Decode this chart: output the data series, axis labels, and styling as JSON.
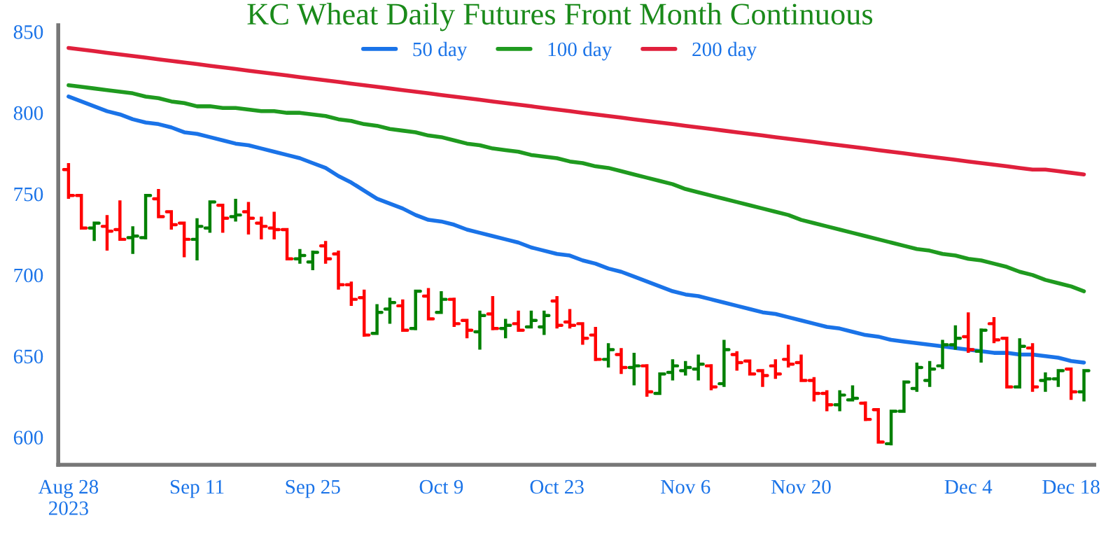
{
  "chart_data": {
    "type": "candlestick",
    "title": "KC Wheat Daily Futures Front Month Continuous",
    "categories": [
      "Aug 28\n2023",
      null,
      null,
      null,
      null,
      null,
      null,
      null,
      null,
      null,
      "Sep 11",
      null,
      null,
      null,
      null,
      null,
      null,
      null,
      null,
      "Sep 25",
      null,
      null,
      null,
      null,
      null,
      null,
      null,
      null,
      null,
      "Oct 9",
      null,
      null,
      null,
      null,
      null,
      null,
      null,
      null,
      "Oct 23",
      null,
      null,
      null,
      null,
      null,
      null,
      null,
      null,
      null,
      "Nov 6",
      null,
      null,
      null,
      null,
      null,
      null,
      null,
      null,
      "Nov 20",
      null,
      null,
      null,
      null,
      null,
      null,
      null,
      null,
      null,
      null,
      null,
      null,
      "Dec 4",
      null,
      null,
      null,
      null,
      null,
      null,
      null,
      "Dec 18",
      null
    ],
    "ohlc": [
      [
        765,
        769,
        747,
        749
      ],
      [
        749,
        749,
        728,
        729
      ],
      [
        729,
        733,
        721,
        732
      ],
      [
        730,
        737,
        715,
        727
      ],
      [
        728,
        746,
        722,
        722
      ],
      [
        723,
        730,
        713,
        724
      ],
      [
        723,
        750,
        722,
        749
      ],
      [
        747,
        753,
        735,
        736
      ],
      [
        739,
        740,
        728,
        731
      ],
      [
        732,
        733,
        711,
        722
      ],
      [
        722,
        735,
        709,
        730
      ],
      [
        729,
        746,
        726,
        745
      ],
      [
        743,
        744,
        726,
        735
      ],
      [
        736,
        747,
        733,
        737
      ],
      [
        739,
        745,
        725,
        735
      ],
      [
        732,
        736,
        722,
        730
      ],
      [
        729,
        739,
        722,
        728
      ],
      [
        728,
        728,
        709,
        710
      ],
      [
        710,
        716,
        707,
        712
      ],
      [
        708,
        715,
        703,
        714
      ],
      [
        718,
        721,
        707,
        710
      ],
      [
        713,
        715,
        691,
        694
      ],
      [
        694,
        696,
        681,
        685
      ],
      [
        686,
        691,
        662,
        663
      ],
      [
        664,
        682,
        663,
        677
      ],
      [
        679,
        686,
        670,
        683
      ],
      [
        681,
        685,
        665,
        666
      ],
      [
        667,
        691,
        666,
        690
      ],
      [
        687,
        692,
        672,
        673
      ],
      [
        677,
        690,
        676,
        685
      ],
      [
        685,
        686,
        668,
        670
      ],
      [
        672,
        673,
        661,
        666
      ],
      [
        665,
        678,
        654,
        675
      ],
      [
        676,
        687,
        666,
        667
      ],
      [
        667,
        673,
        661,
        669
      ],
      [
        670,
        678,
        665,
        666
      ],
      [
        668,
        678,
        667,
        672
      ],
      [
        668,
        678,
        663,
        675
      ],
      [
        684,
        687,
        667,
        669
      ],
      [
        671,
        679,
        667,
        669
      ],
      [
        670,
        670,
        657,
        661
      ],
      [
        663,
        668,
        647,
        648
      ],
      [
        648,
        658,
        643,
        654
      ],
      [
        651,
        655,
        639,
        643
      ],
      [
        643,
        652,
        632,
        644
      ],
      [
        644,
        645,
        625,
        628
      ],
      [
        627,
        640,
        626,
        639
      ],
      [
        640,
        648,
        635,
        644
      ],
      [
        641,
        647,
        638,
        643
      ],
      [
        642,
        651,
        635,
        645
      ],
      [
        644,
        645,
        629,
        631
      ],
      [
        633,
        660,
        631,
        654
      ],
      [
        651,
        653,
        641,
        646
      ],
      [
        647,
        647,
        638,
        639
      ],
      [
        641,
        642,
        631,
        638
      ],
      [
        644,
        648,
        636,
        639
      ],
      [
        648,
        657,
        643,
        645
      ],
      [
        646,
        651,
        635,
        635
      ],
      [
        635,
        637,
        622,
        627
      ],
      [
        627,
        629,
        616,
        620
      ],
      [
        620,
        629,
        616,
        626
      ],
      [
        623,
        632,
        622,
        624
      ],
      [
        621,
        622,
        610,
        611
      ],
      [
        617,
        618,
        596,
        597
      ],
      [
        596,
        617,
        595,
        616
      ],
      [
        616,
        635,
        616,
        634
      ],
      [
        630,
        646,
        628,
        643
      ],
      [
        635,
        647,
        631,
        642
      ],
      [
        644,
        660,
        642,
        657
      ],
      [
        657,
        669,
        654,
        661
      ],
      [
        662,
        677,
        652,
        654
      ],
      [
        653,
        667,
        646,
        666
      ],
      [
        670,
        674,
        658,
        660
      ],
      [
        661,
        662,
        630,
        631
      ],
      [
        631,
        661,
        630,
        656
      ],
      [
        655,
        658,
        628,
        631
      ],
      [
        635,
        640,
        628,
        636
      ],
      [
        636,
        642,
        631,
        641
      ],
      [
        642,
        643,
        623,
        628
      ],
      [
        628,
        642,
        622,
        641
      ]
    ],
    "colors": [
      "#ff0000",
      "#ff0000",
      "#008000",
      "#ff0000",
      "#ff0000",
      "#008000",
      "#008000",
      "#ff0000",
      "#ff0000",
      "#ff0000",
      "#008000",
      "#008000",
      "#ff0000",
      "#008000",
      "#ff0000",
      "#ff0000",
      "#ff0000",
      "#ff0000",
      "#008000",
      "#008000",
      "#ff0000",
      "#ff0000",
      "#ff0000",
      "#ff0000",
      "#008000",
      "#008000",
      "#ff0000",
      "#008000",
      "#ff0000",
      "#008000",
      "#ff0000",
      "#ff0000",
      "#008000",
      "#ff0000",
      "#008000",
      "#ff0000",
      "#008000",
      "#008000",
      "#ff0000",
      "#ff0000",
      "#ff0000",
      "#ff0000",
      "#008000",
      "#ff0000",
      "#008000",
      "#ff0000",
      "#008000",
      "#008000",
      "#008000",
      "#008000",
      "#ff0000",
      "#008000",
      "#ff0000",
      "#ff0000",
      "#ff0000",
      "#ff0000",
      "#ff0000",
      "#ff0000",
      "#ff0000",
      "#ff0000",
      "#008000",
      "#008000",
      "#ff0000",
      "#ff0000",
      "#008000",
      "#008000",
      "#008000",
      "#008000",
      "#008000",
      "#008000",
      "#ff0000",
      "#008000",
      "#ff0000",
      "#ff0000",
      "#008000",
      "#ff0000",
      "#008000",
      "#008000",
      "#ff0000",
      "#008000"
    ],
    "series": [
      {
        "name": "50 day",
        "type": "line",
        "color": "#1a73e8",
        "values": [
          810,
          807,
          804,
          801,
          799,
          796,
          794,
          793,
          791,
          788,
          787,
          785,
          783,
          781,
          780,
          778,
          776,
          774,
          772,
          769,
          766,
          761,
          757,
          752,
          747,
          744,
          741,
          737,
          734,
          733,
          731,
          728,
          726,
          724,
          722,
          720,
          717,
          715,
          713,
          712,
          709,
          707,
          704,
          702,
          699,
          696,
          693,
          690,
          688,
          687,
          685,
          683,
          681,
          679,
          677,
          676,
          674,
          672,
          670,
          668,
          667,
          665,
          663,
          662,
          660,
          659,
          658,
          657,
          656,
          655,
          654,
          653,
          652,
          652,
          651,
          651,
          650,
          649,
          647,
          646
        ]
      },
      {
        "name": "100 day",
        "type": "line",
        "color": "#1f9a1f",
        "values": [
          817,
          816,
          815,
          814,
          813,
          812,
          810,
          809,
          807,
          806,
          804,
          804,
          803,
          803,
          802,
          801,
          801,
          800,
          800,
          799,
          798,
          796,
          795,
          793,
          792,
          790,
          789,
          788,
          786,
          785,
          783,
          781,
          780,
          778,
          777,
          776,
          774,
          773,
          772,
          770,
          769,
          767,
          766,
          764,
          762,
          760,
          758,
          756,
          753,
          751,
          749,
          747,
          745,
          743,
          741,
          739,
          737,
          734,
          732,
          730,
          728,
          726,
          724,
          722,
          720,
          718,
          716,
          715,
          713,
          712,
          710,
          709,
          707,
          705,
          702,
          700,
          697,
          695,
          693,
          690
        ]
      },
      {
        "name": "200 day",
        "type": "line",
        "color": "#e0203c",
        "values": [
          840,
          839,
          838,
          837,
          836,
          835,
          834,
          833,
          832,
          831,
          830,
          829,
          828,
          827,
          826,
          825,
          824,
          823,
          822,
          821,
          820,
          819,
          818,
          817,
          816,
          815,
          814,
          813,
          812,
          811,
          810,
          809,
          808,
          807,
          806,
          805,
          804,
          803,
          802,
          801,
          800,
          799,
          798,
          797,
          796,
          795,
          794,
          793,
          792,
          791,
          790,
          789,
          788,
          787,
          786,
          785,
          784,
          783,
          782,
          781,
          780,
          779,
          778,
          777,
          776,
          775,
          774,
          773,
          772,
          771,
          770,
          769,
          768,
          767,
          766,
          765,
          765,
          764,
          763,
          762
        ]
      }
    ],
    "ylim": [
      583,
      854
    ],
    "yticks": [
      600,
      650,
      700,
      750,
      800,
      850
    ],
    "legend": "top",
    "marker": "none",
    "line_style": "solid"
  }
}
